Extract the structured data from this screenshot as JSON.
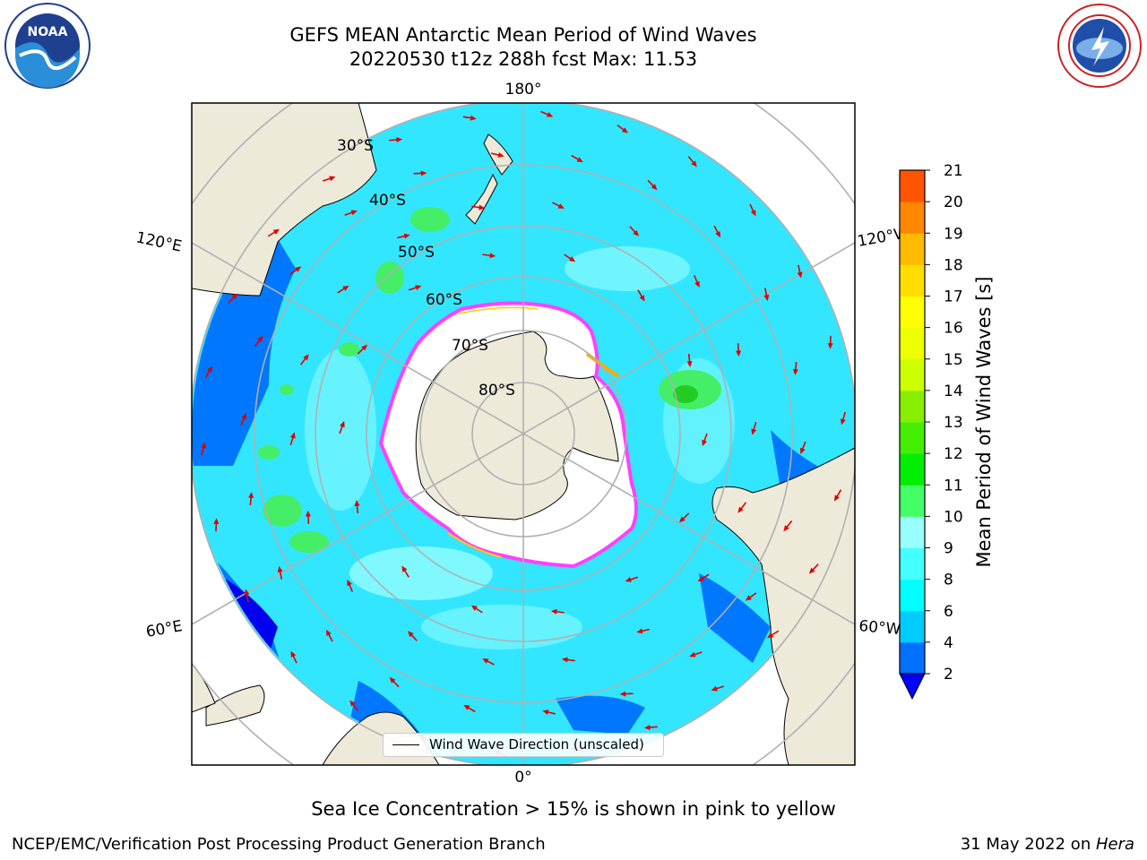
{
  "title": {
    "line1": "GEFS MEAN Antarctic Mean Period of Wind Waves",
    "line2": "20220530 t12z 288h fcst   Max: 11.53"
  },
  "logos": {
    "left": "NOAA",
    "right": "NATIONAL WEATHER SERVICE"
  },
  "map": {
    "projection": "south polar stereographic",
    "longitude_labels": [
      "180°",
      "120°E",
      "120°W",
      "60°E",
      "60°W",
      "0°"
    ],
    "latitude_labels": [
      "30°S",
      "40°S",
      "50°S",
      "60°S",
      "70°S",
      "80°S"
    ],
    "legend": "Wind Wave Direction (unscaled)",
    "colors": {
      "land": "#eeeada",
      "ice": "#ffffff",
      "ice_edge": "#ff40ff",
      "vector": "#e00000"
    }
  },
  "colorbar": {
    "label": "Mean Period of Wind Waves [s]",
    "ticks": [
      "2",
      "4",
      "6",
      "8",
      "9",
      "10",
      "11",
      "12",
      "13",
      "14",
      "15",
      "16",
      "17",
      "18",
      "19",
      "20",
      "21"
    ],
    "colors": [
      "#0000ff",
      "#0070ff",
      "#00ccff",
      "#00ffff",
      "#44ffff",
      "#99ffff",
      "#44ff66",
      "#00ee00",
      "#44ee00",
      "#88ee00",
      "#ccff00",
      "#eeff00",
      "#ffff00",
      "#ffdd00",
      "#ffbb00",
      "#ff8800",
      "#ff5500",
      "#ff2200",
      "#ff0000"
    ],
    "extend": "min"
  },
  "note": "Sea Ice Concentration > 15% is shown in pink to yellow",
  "footer": {
    "left": "NCEP/EMC/Verification Post Processing Product Generation Branch",
    "right_date": "31 May 2022 on ",
    "right_host": "Hera"
  }
}
